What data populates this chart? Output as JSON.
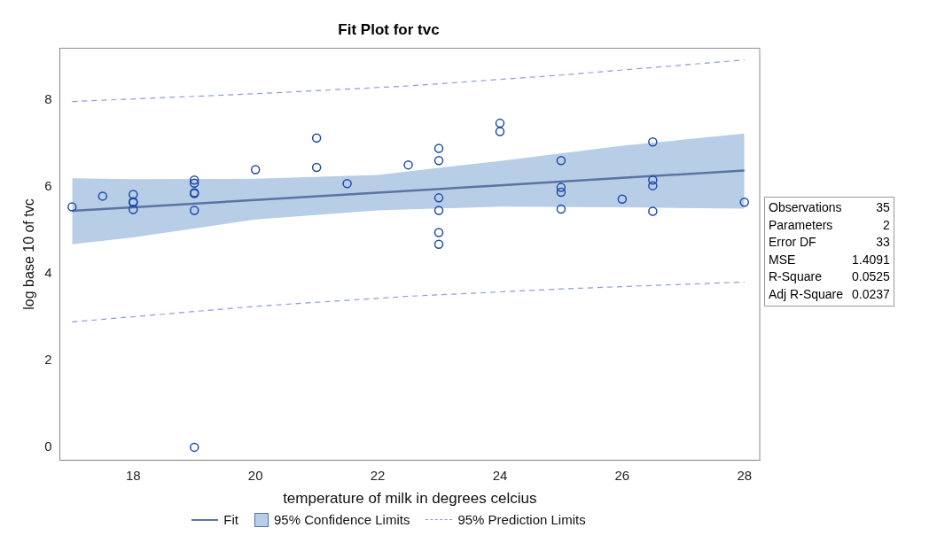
{
  "chart_data": {
    "type": "scatter",
    "title": "Fit Plot for tvc",
    "xlabel": "temperature of milk in degrees celcius",
    "ylabel": "log base 10 of tvc",
    "xlim": [
      16.8,
      28.25
    ],
    "xticks": [
      18,
      20,
      22,
      24,
      26,
      28
    ],
    "ylim": [
      -0.3,
      9.2
    ],
    "yticks": [
      0,
      2,
      4,
      6,
      8
    ],
    "grid": false,
    "legend": "bottom",
    "marker": "circle",
    "series": [
      {
        "name": "Fit",
        "type": "line",
        "line_style": "solid",
        "marker": "none",
        "color": "#5a74a3",
        "x": [
          17,
          18,
          20,
          22,
          24,
          26,
          28
        ],
        "values": [
          5.45,
          5.53,
          5.7,
          5.87,
          6.04,
          6.21,
          6.38
        ],
        "lower": [
          4.68,
          4.84,
          5.25,
          5.46,
          5.55,
          5.53,
          5.5
        ],
        "upper": [
          6.2,
          6.18,
          6.19,
          6.28,
          6.6,
          6.95,
          7.23
        ]
      },
      {
        "name": "95% Prediction Limits",
        "type": "line",
        "line_style": "dashed",
        "marker": "none",
        "color": "#8c9cdc",
        "x": [
          17,
          20,
          22.5,
          25,
          28
        ],
        "values": [
          7.97,
          8.15,
          8.33,
          8.58,
          8.93
        ]
      },
      {
        "type": "line",
        "line_style": "dashed",
        "marker": "none",
        "color": "#8c9cdc",
        "x": [
          17,
          20,
          22.5,
          25,
          28
        ],
        "values": [
          2.89,
          3.25,
          3.48,
          3.65,
          3.81
        ]
      },
      {
        "type": "scatter",
        "color": "#1f4aa8",
        "x": [
          17,
          17.5,
          18,
          18,
          18,
          18,
          19,
          19,
          19,
          19,
          19,
          19,
          20,
          21,
          21,
          21.5,
          22.5,
          23,
          23,
          23,
          23,
          23,
          23,
          24,
          24,
          25,
          25,
          25,
          25,
          26,
          26.5,
          26.5,
          26.5,
          26.5,
          28
        ],
        "values": [
          5.54,
          5.79,
          5.83,
          5.66,
          5.64,
          5.48,
          6.16,
          6.09,
          5.87,
          5.85,
          5.46,
          0,
          6.4,
          7.13,
          6.45,
          6.08,
          6.51,
          6.89,
          6.61,
          5.75,
          5.46,
          4.95,
          4.68,
          7.47,
          7.28,
          6.61,
          5.99,
          5.88,
          5.49,
          5.72,
          7.04,
          6.16,
          6.03,
          5.44,
          5.65
        ]
      }
    ],
    "annotations": [
      "95% Confidence Limits",
      "Observations",
      "35",
      "Parameters",
      "2",
      "Error DF",
      "33",
      "MSE",
      "1.4091",
      "R-Square",
      "0.0525",
      "Adj R-Square",
      "0.0237"
    ]
  }
}
